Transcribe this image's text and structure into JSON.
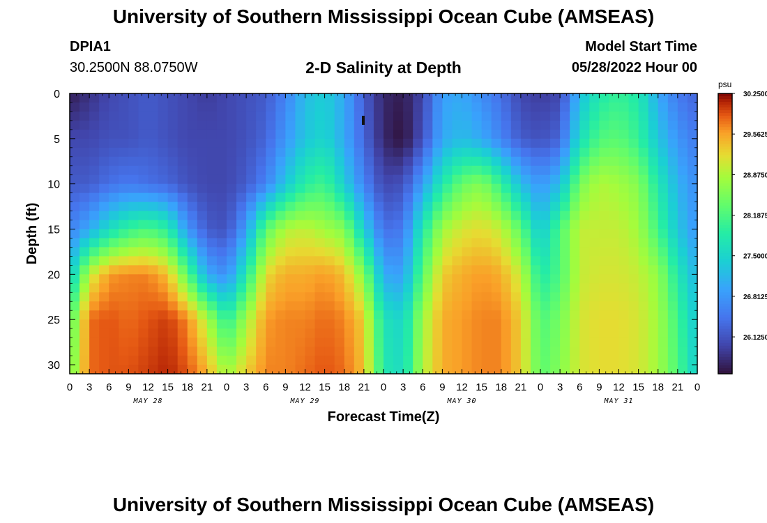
{
  "page": {
    "title": "University of Southern Mississippi Ocean Cube (AMSEAS)",
    "title_repeat": "University of Southern Mississippi Ocean Cube (AMSEAS)",
    "station_id": "DPIA1",
    "station_coords": "30.2500N  88.0750W",
    "subtitle": "2-D Salinity at Depth",
    "model_label": "Model Start Time",
    "model_start": "05/28/2022 Hour 00"
  },
  "chart_data": {
    "type": "heatmap",
    "title": "2-D Salinity at Depth",
    "xlabel": "Forecast Time(Z)",
    "ylabel": "Depth (ft)",
    "x_unit": "hours since model start",
    "xlim": [
      0,
      96
    ],
    "ylim": [
      0,
      31
    ],
    "y_reversed": true,
    "x_ticks": [
      0,
      3,
      6,
      9,
      12,
      15,
      18,
      21,
      24,
      27,
      30,
      33,
      36,
      39,
      42,
      45,
      48,
      51,
      54,
      57,
      60,
      63,
      66,
      69,
      72,
      75,
      78,
      81,
      84,
      87,
      90,
      93,
      96
    ],
    "x_tick_labels": [
      "0",
      "3",
      "6",
      "9",
      "12",
      "15",
      "18",
      "21",
      "0",
      "3",
      "6",
      "9",
      "12",
      "15",
      "18",
      "21",
      "0",
      "3",
      "6",
      "9",
      "12",
      "15",
      "18",
      "21",
      "0",
      "3",
      "6",
      "9",
      "12",
      "15",
      "18",
      "21",
      "0"
    ],
    "y_ticks": [
      0,
      5,
      10,
      15,
      20,
      25,
      30
    ],
    "y_tick_labels": [
      "0",
      "5",
      "10",
      "15",
      "20",
      "25",
      "30"
    ],
    "day_labels": [
      {
        "hour": 12,
        "label": "MAY 28"
      },
      {
        "hour": 36,
        "label": "MAY 29"
      },
      {
        "hour": 60,
        "label": "MAY 30"
      },
      {
        "hour": 84,
        "label": "MAY 31"
      }
    ],
    "colorbar": {
      "unit": "psu",
      "min": 25.5,
      "max": 30.25,
      "tick_values": [
        30.25,
        29.5625,
        28.875,
        28.1875,
        27.5,
        26.8125,
        26.125
      ],
      "tick_labels": [
        "30.2500",
        "29.5625",
        "28.8750",
        "28.1875",
        "27.5000",
        "26.8125",
        "26.1250"
      ]
    },
    "grid": {
      "hours": [
        0,
        3,
        6,
        9,
        12,
        15,
        18,
        21,
        24,
        27,
        30,
        33,
        36,
        39,
        42,
        45,
        48,
        51,
        54,
        57,
        60,
        63,
        66,
        69,
        72,
        75,
        78,
        81,
        84,
        87,
        90,
        93,
        96
      ],
      "depths": [
        0,
        5,
        10,
        15,
        20,
        25,
        31
      ],
      "values": [
        [
          25.6,
          25.8,
          26.0,
          26.1,
          26.2,
          26.1,
          26.0,
          25.9,
          26.0,
          26.1,
          26.2,
          26.6,
          27.2,
          27.4,
          27.0,
          26.2,
          25.7,
          25.6,
          26.0,
          26.9,
          27.0,
          26.7,
          26.4,
          26.0,
          25.9,
          26.0,
          27.2,
          27.8,
          28.0,
          27.8,
          27.0,
          26.5,
          26.3
        ],
        [
          26.0,
          26.0,
          26.1,
          26.1,
          26.2,
          26.1,
          26.0,
          26.0,
          26.0,
          26.1,
          26.3,
          26.8,
          27.3,
          27.5,
          27.0,
          26.3,
          25.7,
          25.5,
          26.1,
          27.0,
          27.2,
          27.0,
          26.6,
          26.2,
          26.1,
          26.3,
          27.6,
          28.2,
          28.3,
          28.0,
          27.3,
          26.8,
          26.5
        ],
        [
          26.2,
          26.2,
          26.4,
          26.5,
          26.4,
          26.3,
          26.1,
          26.0,
          26.0,
          26.2,
          26.6,
          27.3,
          27.9,
          28.1,
          27.4,
          26.6,
          26.0,
          26.1,
          26.9,
          27.8,
          28.4,
          28.6,
          28.0,
          27.2,
          26.8,
          27.2,
          28.5,
          28.9,
          28.8,
          28.6,
          27.8,
          27.1,
          26.7
        ],
        [
          26.6,
          27.0,
          27.6,
          28.0,
          28.2,
          27.9,
          26.8,
          26.2,
          26.1,
          26.9,
          28.3,
          28.9,
          29.0,
          28.8,
          28.6,
          27.4,
          26.4,
          26.5,
          27.8,
          28.8,
          29.1,
          29.2,
          29.0,
          28.3,
          27.3,
          28.2,
          29.0,
          29.0,
          29.0,
          28.8,
          28.1,
          27.3,
          26.8
        ],
        [
          27.3,
          29.0,
          29.6,
          29.7,
          29.7,
          29.4,
          28.3,
          27.0,
          26.7,
          27.8,
          29.2,
          29.5,
          29.5,
          29.6,
          29.4,
          28.6,
          27.0,
          26.9,
          28.3,
          29.3,
          29.5,
          29.6,
          29.5,
          29.0,
          27.8,
          28.2,
          29.0,
          29.1,
          29.1,
          29.0,
          28.7,
          27.8,
          27.1
        ],
        [
          28.2,
          29.8,
          29.9,
          29.8,
          29.9,
          30.0,
          29.7,
          28.9,
          27.9,
          28.8,
          29.6,
          29.7,
          29.7,
          29.8,
          29.7,
          29.3,
          27.7,
          27.5,
          28.8,
          29.5,
          29.6,
          29.7,
          29.7,
          29.3,
          28.2,
          28.5,
          29.1,
          29.2,
          29.2,
          29.1,
          28.8,
          28.1,
          27.3
        ],
        [
          28.4,
          29.8,
          29.9,
          29.9,
          30.0,
          30.1,
          29.9,
          29.5,
          28.8,
          29.3,
          29.7,
          29.7,
          29.8,
          29.9,
          29.8,
          29.4,
          27.8,
          27.6,
          28.9,
          29.5,
          29.6,
          29.7,
          29.7,
          29.3,
          28.3,
          28.6,
          29.1,
          29.2,
          29.2,
          29.1,
          28.8,
          28.2,
          27.4
        ]
      ]
    }
  }
}
